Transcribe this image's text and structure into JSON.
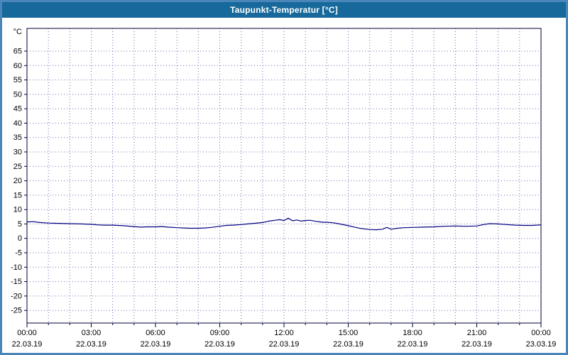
{
  "window": {
    "title": "Taupunkt-Temperatur [°C]"
  },
  "chart_data": {
    "type": "line",
    "title": "Taupunkt-Temperatur [°C]",
    "ylabel": "°C",
    "xlabel": "",
    "ylim": [
      -29.4,
      72.9
    ],
    "yticks": [
      65,
      60,
      55,
      50,
      45,
      40,
      35,
      30,
      25,
      20,
      15,
      10,
      5,
      0,
      -5,
      -10,
      -15,
      -20,
      -25
    ],
    "xlim": [
      0,
      24
    ],
    "x_minor_step_hours": 1,
    "x_major_ticks": [
      {
        "hour": 0,
        "time": "00:00",
        "date": "22.03.19"
      },
      {
        "hour": 3,
        "time": "03:00",
        "date": "22.03.19"
      },
      {
        "hour": 6,
        "time": "06:00",
        "date": "22.03.19"
      },
      {
        "hour": 9,
        "time": "09:00",
        "date": "22.03.19"
      },
      {
        "hour": 12,
        "time": "12:00",
        "date": "22.03.19"
      },
      {
        "hour": 15,
        "time": "15:00",
        "date": "22.03.19"
      },
      {
        "hour": 18,
        "time": "18:00",
        "date": "22.03.19"
      },
      {
        "hour": 21,
        "time": "21:00",
        "date": "22.03.19"
      },
      {
        "hour": 24,
        "time": "00:00",
        "date": "23.03.19"
      }
    ],
    "grid": "dotted",
    "legend": "none",
    "colors": {
      "line": "#000080",
      "grid": "#6a6ab0",
      "axis": "#00003a",
      "title_bar": "#17699b",
      "frame": "#4a86ba",
      "text": "#000000"
    },
    "series": [
      {
        "name": "Taupunkt-Temperatur",
        "unit": "°C",
        "points": [
          [
            0,
            5.7
          ],
          [
            0.3,
            5.8
          ],
          [
            0.6,
            5.5
          ],
          [
            1,
            5.3
          ],
          [
            1.5,
            5.2
          ],
          [
            2,
            5.1
          ],
          [
            2.5,
            5.0
          ],
          [
            3,
            4.9
          ],
          [
            3.3,
            4.7
          ],
          [
            3.6,
            4.6
          ],
          [
            4,
            4.6
          ],
          [
            4.5,
            4.4
          ],
          [
            5,
            4.1
          ],
          [
            5.3,
            3.9
          ],
          [
            5.6,
            4.0
          ],
          [
            6,
            4.0
          ],
          [
            6.3,
            4.1
          ],
          [
            6.6,
            3.9
          ],
          [
            7,
            3.7
          ],
          [
            7.3,
            3.6
          ],
          [
            7.6,
            3.5
          ],
          [
            8,
            3.5
          ],
          [
            8.3,
            3.6
          ],
          [
            8.6,
            3.8
          ],
          [
            9,
            4.2
          ],
          [
            9.3,
            4.5
          ],
          [
            9.6,
            4.6
          ],
          [
            10,
            4.8
          ],
          [
            10.3,
            5.0
          ],
          [
            10.6,
            5.2
          ],
          [
            11,
            5.5
          ],
          [
            11.3,
            6.0
          ],
          [
            11.6,
            6.3
          ],
          [
            11.8,
            6.5
          ],
          [
            12,
            6.2
          ],
          [
            12.2,
            7.0
          ],
          [
            12.4,
            6.1
          ],
          [
            12.6,
            6.4
          ],
          [
            12.8,
            6.0
          ],
          [
            13,
            6.2
          ],
          [
            13.2,
            6.3
          ],
          [
            13.5,
            5.9
          ],
          [
            13.8,
            5.6
          ],
          [
            14,
            5.6
          ],
          [
            14.3,
            5.4
          ],
          [
            14.6,
            5.0
          ],
          [
            15,
            4.4
          ],
          [
            15.3,
            3.9
          ],
          [
            15.6,
            3.4
          ],
          [
            16,
            3.1
          ],
          [
            16.3,
            3.0
          ],
          [
            16.6,
            3.2
          ],
          [
            16.8,
            3.8
          ],
          [
            17,
            3.2
          ],
          [
            17.3,
            3.5
          ],
          [
            17.6,
            3.7
          ],
          [
            18,
            3.8
          ],
          [
            18.5,
            3.9
          ],
          [
            19,
            4.0
          ],
          [
            19.5,
            4.2
          ],
          [
            20,
            4.3
          ],
          [
            20.5,
            4.2
          ],
          [
            21,
            4.3
          ],
          [
            21.3,
            4.8
          ],
          [
            21.6,
            5.1
          ],
          [
            22,
            5.0
          ],
          [
            22.4,
            4.8
          ],
          [
            22.8,
            4.6
          ],
          [
            23.2,
            4.5
          ],
          [
            23.6,
            4.5
          ],
          [
            24,
            4.7
          ]
        ]
      }
    ]
  }
}
